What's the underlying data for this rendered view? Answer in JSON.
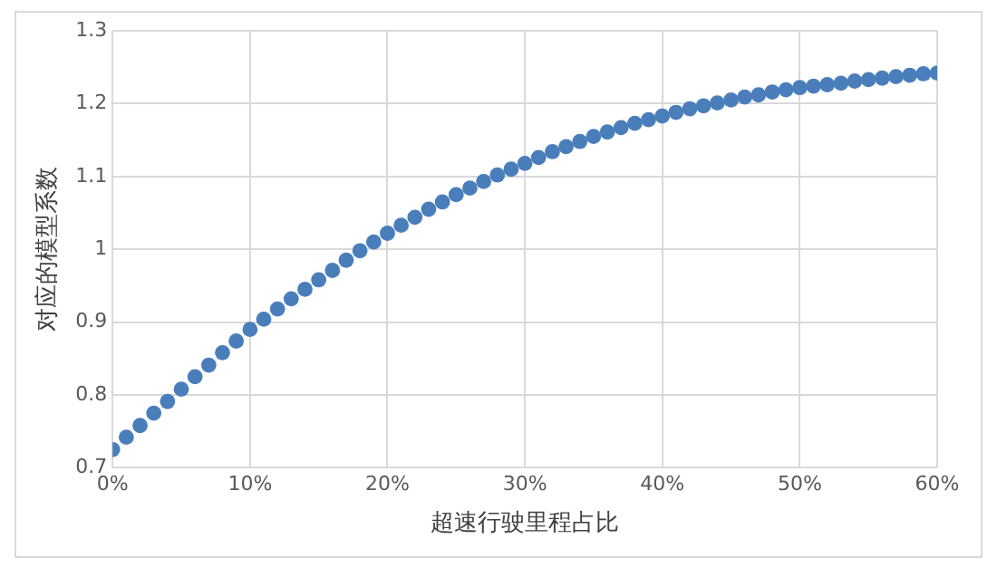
{
  "chart_data": {
    "type": "scatter",
    "xlabel": "超速行驶里程占比",
    "ylabel": "对应的模型系数",
    "x": [
      0,
      1,
      2,
      3,
      4,
      5,
      6,
      7,
      8,
      9,
      10,
      11,
      12,
      13,
      14,
      15,
      16,
      17,
      18,
      19,
      20,
      21,
      22,
      23,
      24,
      25,
      26,
      27,
      28,
      29,
      30,
      31,
      32,
      33,
      34,
      35,
      36,
      37,
      38,
      39,
      40,
      41,
      42,
      43,
      44,
      45,
      46,
      47,
      48,
      49,
      50,
      51,
      52,
      53,
      54,
      55,
      56,
      57,
      58,
      59,
      60
    ],
    "series": [
      {
        "color": "#4a7ebb",
        "values": [
          0.725,
          0.742,
          0.758,
          0.775,
          0.791,
          0.808,
          0.825,
          0.841,
          0.858,
          0.874,
          0.89,
          0.904,
          0.918,
          0.932,
          0.945,
          0.958,
          0.971,
          0.985,
          0.998,
          1.01,
          1.022,
          1.033,
          1.044,
          1.055,
          1.065,
          1.075,
          1.084,
          1.093,
          1.102,
          1.11,
          1.118,
          1.126,
          1.134,
          1.141,
          1.148,
          1.155,
          1.161,
          1.167,
          1.173,
          1.178,
          1.183,
          1.188,
          1.193,
          1.197,
          1.201,
          1.205,
          1.209,
          1.212,
          1.216,
          1.219,
          1.222,
          1.224,
          1.226,
          1.228,
          1.231,
          1.233,
          1.235,
          1.237,
          1.239,
          1.241,
          1.242
        ]
      }
    ],
    "xlim": [
      0,
      60
    ],
    "xticks": [
      {
        "value": 0,
        "label": "0%"
      },
      {
        "value": 10,
        "label": "10%"
      },
      {
        "value": 20,
        "label": "20%"
      },
      {
        "value": 30,
        "label": "30%"
      },
      {
        "value": 40,
        "label": "40%"
      },
      {
        "value": 50,
        "label": "50%"
      },
      {
        "value": 60,
        "label": "60%"
      }
    ],
    "ylim": [
      0.7,
      1.3
    ],
    "yticks": [
      0.7,
      0.8,
      0.9,
      1,
      1.1,
      1.2,
      1.3
    ],
    "grid": true,
    "legend": false,
    "marker": "circle"
  }
}
